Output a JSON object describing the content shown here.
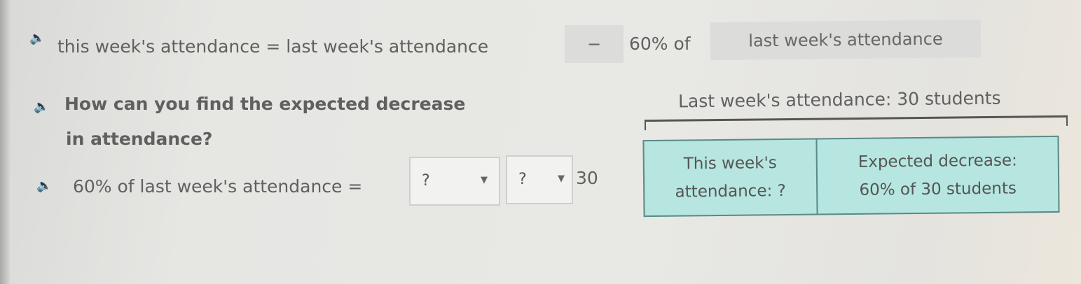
{
  "equation_row": {
    "left": "this week's attendance = last week's attendance",
    "operator_tile": "−",
    "middle": "60% of",
    "right_tile": "last week's attendance"
  },
  "question": {
    "line1": "How can you find the expected decrease",
    "line2": "in attendance?"
  },
  "answer_row": {
    "label": "60% of last week's attendance =",
    "dropdown1": "?",
    "dropdown2": "?",
    "value": "30"
  },
  "diagram": {
    "total_label": "Last week's attendance: 30 students",
    "cell1": [
      "This week's",
      "attendance: ?"
    ],
    "cell2": [
      "Expected decrease:",
      "60% of 30 students"
    ]
  },
  "colors": {
    "table_fill": "#b6e6df",
    "table_border": "#5a8a86",
    "speaker": "#4a6aa8"
  }
}
